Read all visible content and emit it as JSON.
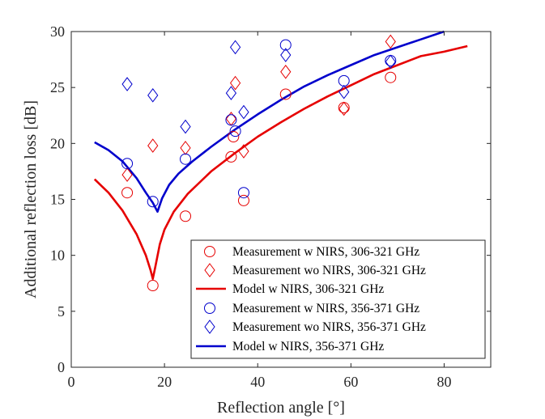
{
  "chart_data": {
    "type": "scatter",
    "xlabel": "Reflection angle [°]",
    "ylabel": "Additional reflection loss [dB]",
    "xlim": [
      0,
      90
    ],
    "ylim": [
      0,
      30
    ],
    "xticks": [
      0,
      20,
      40,
      60,
      80
    ],
    "yticks": [
      0,
      5,
      10,
      15,
      20,
      25,
      30
    ],
    "legend_position": "bottom-right",
    "colors": {
      "red": "#e60000",
      "blue": "#0000cc",
      "axis": "#262626"
    },
    "series": [
      {
        "name": "Measurement w NIRS, 306-321 GHz",
        "kind": "circle",
        "color": "red",
        "x": [
          12,
          17.5,
          24.5,
          34.3,
          34.8,
          37,
          46,
          58.5,
          68.5
        ],
        "y": [
          15.6,
          7.3,
          13.5,
          18.8,
          20.6,
          14.9,
          24.4,
          23.2,
          25.9
        ]
      },
      {
        "name": "Measurement wo NIRS, 306-321 GHz",
        "kind": "diamond",
        "color": "red",
        "x": [
          12,
          17.5,
          24.5,
          34.3,
          35.2,
          37,
          46,
          58.5,
          68.5
        ],
        "y": [
          17.2,
          19.8,
          19.6,
          22.2,
          25.4,
          19.3,
          26.4,
          23.1,
          29.1
        ]
      },
      {
        "name": "Model w NIRS, 306-321 GHz",
        "kind": "line",
        "color": "red",
        "x": [
          5,
          8,
          11,
          14,
          16,
          17,
          17.5,
          18,
          19,
          20,
          22,
          25,
          30,
          35,
          40,
          45,
          50,
          55,
          60,
          65,
          70,
          75,
          80,
          85
        ],
        "y": [
          16.8,
          15.6,
          14.0,
          11.9,
          10.0,
          8.7,
          7.9,
          8.9,
          11.0,
          12.3,
          13.9,
          15.5,
          17.5,
          19.1,
          20.6,
          21.9,
          23.1,
          24.2,
          25.2,
          26.2,
          27.0,
          27.8,
          28.2,
          28.7
        ]
      },
      {
        "name": "Measurement w NIRS, 356-371 GHz",
        "kind": "circle",
        "color": "blue",
        "x": [
          12,
          17.5,
          24.5,
          34.3,
          35.2,
          37,
          46,
          58.5,
          68.5
        ],
        "y": [
          18.2,
          14.8,
          18.6,
          22.1,
          21.1,
          15.6,
          28.8,
          25.6,
          27.4
        ]
      },
      {
        "name": "Measurement wo NIRS, 356-371 GHz",
        "kind": "diamond",
        "color": "blue",
        "x": [
          12,
          17.5,
          24.5,
          34.3,
          35.2,
          37,
          46,
          58.5,
          68.5
        ],
        "y": [
          25.3,
          24.3,
          21.5,
          24.5,
          28.6,
          22.8,
          27.9,
          24.6,
          27.3
        ]
      },
      {
        "name": "Model w NIRS, 356-371 GHz",
        "kind": "line",
        "color": "blue",
        "x": [
          5,
          8,
          11,
          14,
          16,
          17.5,
          18.5,
          19.5,
          21,
          23,
          26,
          30,
          35,
          40,
          45,
          50,
          55,
          60,
          65,
          70,
          75,
          80
        ],
        "y": [
          20.1,
          19.4,
          18.4,
          16.9,
          15.6,
          14.7,
          13.9,
          15.1,
          16.3,
          17.3,
          18.4,
          19.7,
          21.2,
          22.6,
          23.9,
          25.1,
          26.1,
          27.0,
          27.9,
          28.6,
          29.3,
          30.0
        ]
      }
    ]
  }
}
